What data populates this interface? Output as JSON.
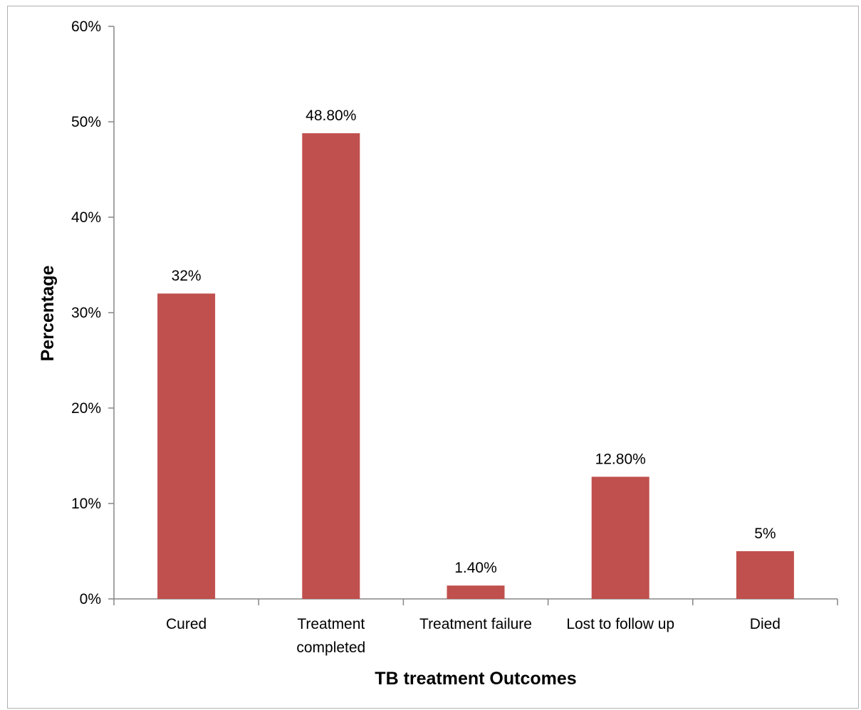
{
  "chart_data": {
    "type": "bar",
    "categories": [
      [
        "Cured"
      ],
      [
        "Treatment",
        "completed"
      ],
      [
        "Treatment failure"
      ],
      [
        "Lost to follow up"
      ],
      [
        "Died"
      ]
    ],
    "values": [
      32,
      48.8,
      1.4,
      12.8,
      5
    ],
    "data_labels": [
      "32%",
      "48.80%",
      "1.40%",
      "12.80%",
      "5%"
    ],
    "ylim": [
      0,
      60
    ],
    "yticks": [
      0,
      10,
      20,
      30,
      40,
      50,
      60
    ],
    "ytick_labels": [
      "0%",
      "10%",
      "20%",
      "30%",
      "40%",
      "50%",
      "60%"
    ],
    "xlabel": "TB treatment Outcomes",
    "ylabel": "Percentage",
    "title": "",
    "grid": false,
    "legend": "none",
    "bar_color": "#c0504d",
    "axis_color": "#868686"
  }
}
